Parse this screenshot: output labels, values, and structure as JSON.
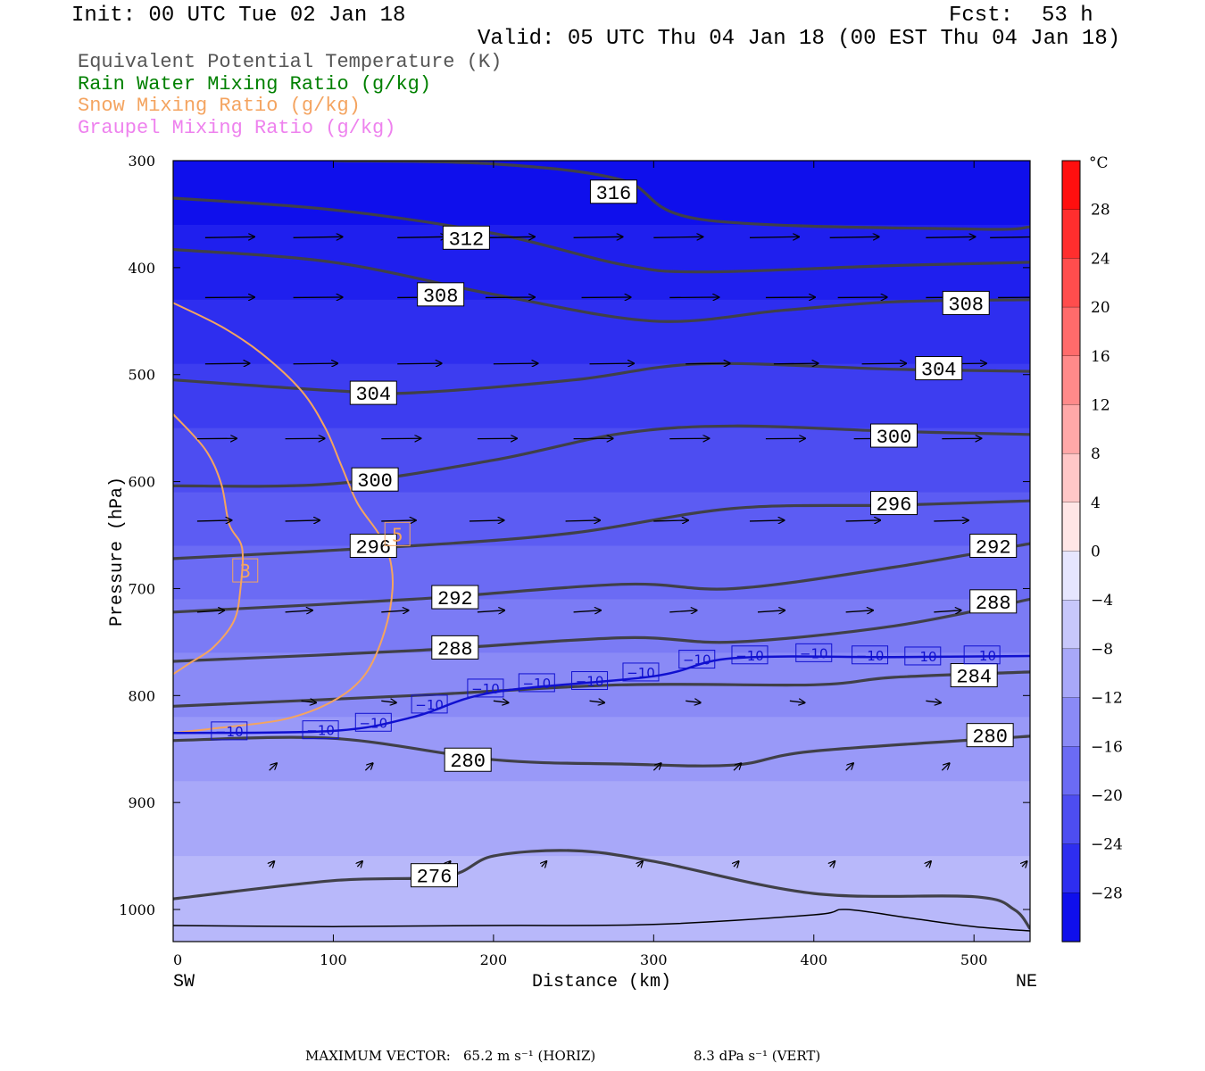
{
  "header": {
    "init": "Init: 00 UTC Tue 02 Jan 18",
    "fcst_label": "Fcst:",
    "fcst_value": "53 h",
    "valid": "Valid: 05 UTC Thu 04 Jan 18 (00 EST Thu 04 Jan 18)"
  },
  "legend": [
    {
      "text": "Equivalent Potential Temperature (K)",
      "color": "#555555"
    },
    {
      "text": "Rain Water Mixing Ratio (g/kg)",
      "color": "#008000"
    },
    {
      "text": "Snow Mixing Ratio (g/kg)",
      "color": "#f4a460"
    },
    {
      "text": "Graupel Mixing Ratio (g/kg)",
      "color": "#ee82ee"
    }
  ],
  "footer": {
    "max_vector_label": "MAXIMUM VECTOR:",
    "horiz": "65.2 m s⁻¹ (HORIZ)",
    "vert": "8.3 dPa s⁻¹ (VERT)"
  },
  "chart_data": {
    "type": "contour cross-section",
    "xlabel": "Distance (km)",
    "ylabel": "Pressure (hPa)",
    "xlim": [
      0,
      535
    ],
    "ylim": [
      1030,
      300
    ],
    "x_ticks": [
      0,
      100,
      200,
      300,
      400,
      500
    ],
    "y_ticks": [
      300,
      400,
      500,
      600,
      700,
      800,
      900,
      1000
    ],
    "x_end_labels": {
      "left": "SW",
      "right": "NE"
    },
    "colorbar": {
      "unit": "°C",
      "tick_labels": [
        "28",
        "24",
        "20",
        "16",
        "12",
        "8",
        "4",
        "0",
        "−4",
        "−8",
        "−12",
        "−16",
        "−20",
        "−24",
        "−28"
      ],
      "tick_values": [
        28,
        24,
        20,
        16,
        12,
        8,
        4,
        0,
        -4,
        -8,
        -12,
        -16,
        -20,
        -24,
        -28
      ],
      "range": [
        -32,
        32
      ],
      "step": 4
    },
    "temperature_fill_bands": [
      {
        "level": -30,
        "pressure_top": 300,
        "pressure_bottom": 360
      },
      {
        "level": -28,
        "pressure_top": 360,
        "pressure_bottom": 430
      },
      {
        "level": -26,
        "pressure_top": 430,
        "pressure_bottom": 490
      },
      {
        "level": -24,
        "pressure_top": 490,
        "pressure_bottom": 550
      },
      {
        "level": -22,
        "pressure_top": 550,
        "pressure_bottom": 610
      },
      {
        "level": -20,
        "pressure_top": 610,
        "pressure_bottom": 660
      },
      {
        "level": -18,
        "pressure_top": 660,
        "pressure_bottom": 710
      },
      {
        "level": -16,
        "pressure_top": 710,
        "pressure_bottom": 760
      },
      {
        "level": -14,
        "pressure_top": 760,
        "pressure_bottom": 820
      },
      {
        "level": -12,
        "pressure_top": 820,
        "pressure_bottom": 880
      },
      {
        "level": -10,
        "pressure_top": 880,
        "pressure_bottom": 950
      },
      {
        "level": -8,
        "pressure_top": 950,
        "pressure_bottom": 1030
      }
    ],
    "theta_e_contours": [
      {
        "value": "316",
        "points": [
          [
            100,
            300
          ],
          [
            200,
            303
          ],
          [
            280,
            318
          ],
          [
            330,
            355
          ],
          [
            500,
            364
          ],
          [
            535,
            362
          ]
        ],
        "label_at": [
          275,
          329
        ]
      },
      {
        "value": "312",
        "points": [
          [
            0,
            335
          ],
          [
            100,
            346
          ],
          [
            200,
            368
          ],
          [
            280,
            397
          ],
          [
            330,
            404
          ],
          [
            450,
            398
          ],
          [
            535,
            395
          ]
        ],
        "label_at": [
          183,
          372
        ]
      },
      {
        "value": "308",
        "points": [
          [
            0,
            383
          ],
          [
            100,
            395
          ],
          [
            200,
            425
          ],
          [
            300,
            450
          ],
          [
            380,
            440
          ],
          [
            450,
            432
          ],
          [
            535,
            430
          ]
        ],
        "label_at": [
          167,
          425
        ]
      },
      {
        "value": "308",
        "points": [],
        "label_at": [
          495,
          433
        ]
      },
      {
        "value": "304",
        "points": [
          [
            0,
            505
          ],
          [
            100,
            515
          ],
          [
            150,
            517
          ],
          [
            250,
            505
          ],
          [
            330,
            490
          ],
          [
            450,
            495
          ],
          [
            535,
            497
          ]
        ],
        "label_at": [
          125,
          517
        ]
      },
      {
        "value": "304",
        "points": [],
        "label_at": [
          478,
          494
        ]
      },
      {
        "value": "300",
        "points": [
          [
            0,
            604
          ],
          [
            100,
            602
          ],
          [
            200,
            580
          ],
          [
            280,
            555
          ],
          [
            350,
            548
          ],
          [
            450,
            553
          ],
          [
            535,
            556
          ]
        ],
        "label_at": [
          126,
          598
        ]
      },
      {
        "value": "300",
        "points": [],
        "label_at": [
          450,
          557
        ]
      },
      {
        "value": "296",
        "points": [
          [
            0,
            672
          ],
          [
            150,
            660
          ],
          [
            250,
            648
          ],
          [
            350,
            625
          ],
          [
            450,
            622
          ],
          [
            535,
            618
          ]
        ],
        "label_at": [
          125,
          660
        ]
      },
      {
        "value": "296",
        "points": [],
        "label_at": [
          450,
          620
        ]
      },
      {
        "value": "292",
        "points": [
          [
            0,
            722
          ],
          [
            150,
            710
          ],
          [
            280,
            696
          ],
          [
            350,
            700
          ],
          [
            450,
            680
          ],
          [
            535,
            658
          ]
        ],
        "label_at": [
          176,
          708
        ]
      },
      {
        "value": "292",
        "points": [],
        "label_at": [
          512,
          660
        ]
      },
      {
        "value": "288",
        "points": [
          [
            0,
            768
          ],
          [
            150,
            758
          ],
          [
            280,
            746
          ],
          [
            350,
            750
          ],
          [
            450,
            735
          ],
          [
            535,
            710
          ]
        ],
        "label_at": [
          176,
          755
        ]
      },
      {
        "value": "288",
        "points": [],
        "label_at": [
          512,
          712
        ]
      },
      {
        "value": "284",
        "points": [
          [
            0,
            810
          ],
          [
            150,
            800
          ],
          [
            280,
            790
          ],
          [
            400,
            790
          ],
          [
            450,
            783
          ],
          [
            535,
            778
          ]
        ],
        "label_at": [
          500,
          781
        ]
      },
      {
        "value": "280",
        "points": [
          [
            0,
            842
          ],
          [
            100,
            840
          ],
          [
            200,
            860
          ],
          [
            280,
            864
          ],
          [
            350,
            865
          ],
          [
            400,
            852
          ],
          [
            535,
            838
          ]
        ],
        "label_at": [
          184,
          860
        ]
      },
      {
        "value": "280",
        "points": [],
        "label_at": [
          510,
          837
        ]
      },
      {
        "value": "276",
        "points": [
          [
            0,
            990
          ],
          [
            100,
            973
          ],
          [
            170,
            969
          ],
          [
            200,
            950
          ],
          [
            250,
            945
          ],
          [
            300,
            955
          ],
          [
            400,
            985
          ],
          [
            500,
            988
          ],
          [
            525,
            1000
          ],
          [
            535,
            1018
          ]
        ],
        "label_at": [
          163,
          968
        ]
      }
    ],
    "isotherm_minus10": {
      "value": "−10",
      "points": [
        [
          0,
          835
        ],
        [
          100,
          833
        ],
        [
          150,
          820
        ],
        [
          200,
          797
        ],
        [
          300,
          782
        ],
        [
          350,
          765
        ],
        [
          450,
          764
        ],
        [
          535,
          763
        ]
      ],
      "label_positions": [
        [
          35,
          833
        ],
        [
          92,
          832
        ],
        [
          125,
          825
        ],
        [
          160,
          808
        ],
        [
          195,
          793
        ],
        [
          227,
          788
        ],
        [
          260,
          786
        ],
        [
          292,
          778
        ],
        [
          327,
          766
        ],
        [
          360,
          762
        ],
        [
          400,
          760
        ],
        [
          435,
          762
        ],
        [
          468,
          763
        ],
        [
          505,
          762
        ]
      ]
    },
    "snow_mixing_ratio": {
      "labels": [
        "3",
        "5"
      ],
      "outer_contour": [
        [
          0,
          433
        ],
        [
          30,
          455
        ],
        [
          55,
          480
        ],
        [
          80,
          515
        ],
        [
          95,
          550
        ],
        [
          105,
          585
        ],
        [
          115,
          620
        ],
        [
          128,
          648
        ],
        [
          135,
          670
        ],
        [
          137,
          700
        ],
        [
          132,
          740
        ],
        [
          120,
          780
        ],
        [
          100,
          805
        ],
        [
          70,
          822
        ],
        [
          30,
          830
        ],
        [
          0,
          835
        ]
      ],
      "inner_contour": [
        [
          0,
          537
        ],
        [
          20,
          570
        ],
        [
          30,
          602
        ],
        [
          35,
          640
        ],
        [
          43,
          662
        ],
        [
          42,
          700
        ],
        [
          38,
          730
        ],
        [
          25,
          755
        ],
        [
          10,
          770
        ],
        [
          0,
          780
        ]
      ],
      "label_3_at": [
        45,
        683
      ],
      "label_5_at": [
        140,
        649
      ]
    },
    "surface_line": [
      [
        0,
        1015
      ],
      [
        100,
        1016
      ],
      [
        200,
        1015
      ],
      [
        300,
        1014
      ],
      [
        400,
        1005
      ],
      [
        420,
        1000
      ],
      [
        460,
        1008
      ],
      [
        500,
        1016
      ],
      [
        535,
        1020
      ]
    ],
    "wind_vectors": [
      {
        "p": 372,
        "xs": [
          20,
          75,
          140,
          195,
          250,
          300,
          360,
          410,
          470,
          510
        ],
        "u": 1,
        "w": 0.05
      },
      {
        "p": 428,
        "xs": [
          20,
          75,
          140,
          195,
          255,
          310,
          370,
          415,
          470,
          515
        ],
        "u": 1,
        "w": 0.02
      },
      {
        "p": 490,
        "xs": [
          20,
          75,
          140,
          200,
          260,
          320,
          375,
          430,
          480
        ],
        "u": 0.9,
        "w": 0.03
      },
      {
        "p": 560,
        "xs": [
          15,
          70,
          130,
          190,
          250,
          310,
          370,
          425,
          480
        ],
        "u": 0.8,
        "w": 0.02
      },
      {
        "p": 637,
        "xs": [
          15,
          70,
          130,
          185,
          245,
          300,
          360,
          420,
          475
        ],
        "u": 0.7,
        "w": 0.05
      },
      {
        "p": 722,
        "xs": [
          15,
          70,
          130,
          190,
          250,
          310,
          365,
          420,
          475
        ],
        "u": 0.55,
        "w": 0.1
      },
      {
        "p": 805,
        "xs": [
          80,
          130,
          200,
          260,
          320,
          385,
          470
        ],
        "u": 0.3,
        "w": -0.1
      },
      {
        "p": 870,
        "xs": [
          60,
          120,
          300,
          350,
          420,
          480
        ],
        "u": 0.15,
        "w": 0.4
      },
      {
        "p": 960,
        "xs": [
          60,
          115,
          170,
          230,
          290,
          350,
          410,
          470,
          530
        ],
        "u": 0.1,
        "w": 0.3
      }
    ]
  }
}
